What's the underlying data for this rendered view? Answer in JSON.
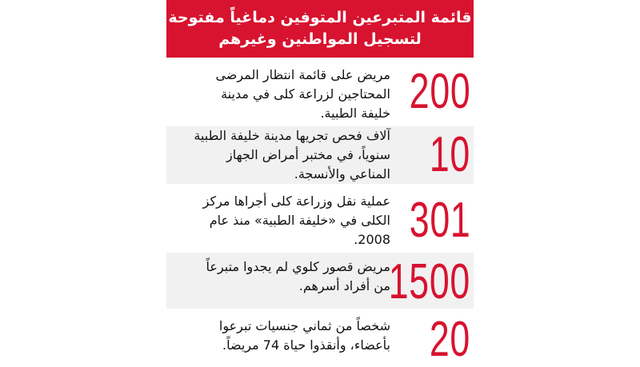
{
  "header": {
    "line1": "قائمة المتبرعين المتوفين دماغياً مفتوحة",
    "line2": "لتسجيل المواطنين وغيرهم"
  },
  "colors": {
    "accent": "#d7132f",
    "row_alt": "#f1f1f1"
  },
  "stats": [
    {
      "number": "200",
      "lines": [
        "مريض على قائمة انتظار المرضى",
        "المحتاجين لزراعة كلى في مدينة",
        "خليفة الطبية."
      ]
    },
    {
      "number": "10",
      "lines": [
        "آلاف فحص تجريها مدينة خليفة الطبية",
        "سنوياً، في مختبر أمراض الجهاز",
        "المناعي والأنسجة."
      ]
    },
    {
      "number": "301",
      "lines": [
        "عملية نقل وزراعة كلى أجراها مركز",
        "الكلى في «خليفة الطبية» منذ عام",
        "2008."
      ]
    },
    {
      "number": "1500",
      "lines": [
        "مريض قصور كلوي لم يجدوا متبرعاً",
        "من أفراد أسرهم."
      ]
    },
    {
      "number": "20",
      "lines": [
        "شخصاً من ثماني جنسيات تبرعوا",
        "بأعضاء، وأنقذوا حياة 74 مريضاً."
      ]
    }
  ]
}
